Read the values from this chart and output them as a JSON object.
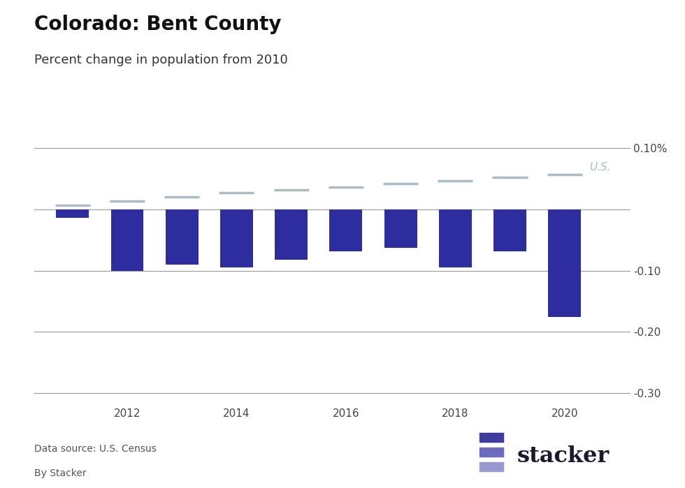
{
  "title": "Colorado: Bent County",
  "subtitle": "Percent change in population from 2010",
  "years": [
    2011,
    2012,
    2013,
    2014,
    2015,
    2016,
    2017,
    2018,
    2019,
    2020
  ],
  "county_values": [
    -0.014,
    -0.1,
    -0.09,
    -0.095,
    -0.082,
    -0.068,
    -0.063,
    -0.095,
    -0.068,
    -0.176
  ],
  "us_values": [
    0.007,
    0.014,
    0.021,
    0.027,
    0.032,
    0.037,
    0.042,
    0.047,
    0.052,
    0.057
  ],
  "bar_color": "#2d2d9f",
  "us_line_color": "#a8bcc8",
  "us_label_color": "#a8bcc8",
  "background_color": "#ffffff",
  "ylim": [
    -0.32,
    0.135
  ],
  "yticks": [
    0.1,
    0.0,
    -0.1,
    -0.2,
    -0.3
  ],
  "ytick_labels": [
    "0.10%",
    "",
    "-0.10",
    "-0.20",
    "-0.30"
  ],
  "xtick_years": [
    2012,
    2014,
    2016,
    2018,
    2020
  ],
  "data_source": "Data source: U.S. Census",
  "by_line": "By Stacker",
  "stacker_text_color": "#1a1a2e",
  "stacker_logo_colors": [
    "#3d3d9f",
    "#6b6bbf",
    "#9999cf"
  ]
}
